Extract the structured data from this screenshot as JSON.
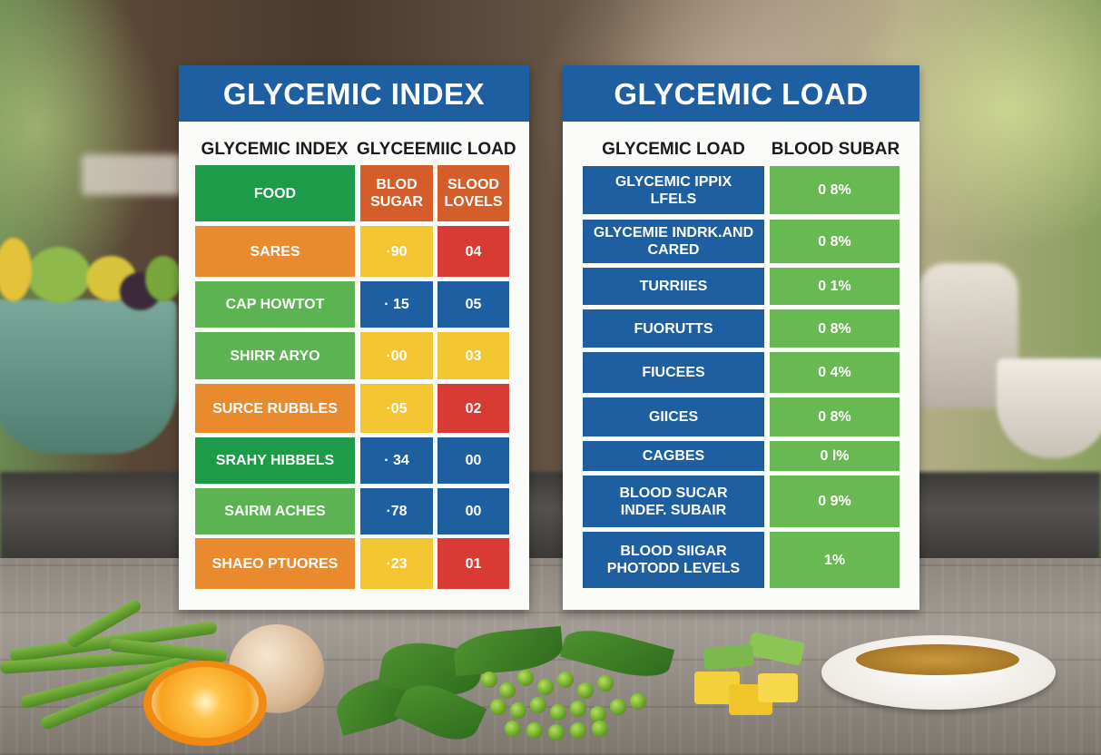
{
  "left_card": {
    "title": "GLYCEMIC INDEX",
    "col_heads": [
      "GLYCEMIC INDEX",
      "GLYCEEMIIC LOAD"
    ],
    "header_row": {
      "food": "FOOD",
      "c1": "BLOD\nSUGAR",
      "c2": "SLOOD\nLOVELS"
    },
    "rows": [
      {
        "food": "SARES",
        "v1": "·90",
        "v2": "04"
      },
      {
        "food": "CAP HOWTOT",
        "v1": "· 15",
        "v2": "05"
      },
      {
        "food": "SHIRR ARYO",
        "v1": "·00",
        "v2": "03"
      },
      {
        "food": "SURCE RUBBLES",
        "v1": "·05",
        "v2": "02"
      },
      {
        "food": "SRAHY HIBBELS",
        "v1": "· 34",
        "v2": "00"
      },
      {
        "food": "SAIRM ACHES",
        "v1": "·78",
        "v2": "00"
      },
      {
        "food": "SHAEO PTUORES",
        "v1": "·23",
        "v2": "01"
      }
    ]
  },
  "right_card": {
    "title": "GLYCEMIC LOAD",
    "col_heads": [
      "GLYCEMIC LOAD",
      "BLOOD SUBAR"
    ],
    "rows": [
      {
        "label": "GLYCEMIC IPPIX\nLFELS",
        "value": "0 8%"
      },
      {
        "label": "GLYCEMIE INDRK.AND\nCARED",
        "value": "0 8%"
      },
      {
        "label": "TURRIIES",
        "value": "0 1%"
      },
      {
        "label": "FUORUTTS",
        "value": "0 8%"
      },
      {
        "label": "FIUCEES",
        "value": "0 4%"
      },
      {
        "label": "GIICES",
        "value": "0 8%"
      },
      {
        "label": "CAGBES",
        "value": "0 l%"
      },
      {
        "label": "BLOOD SUCAR\nINDEF. SUBAIR",
        "value": "0 9%"
      },
      {
        "label": "BLOOD SIIGAR\nPHOTODD LEVELS",
        "value": "1%"
      }
    ]
  },
  "colors": {
    "header_blue": "#1e5fa2",
    "green": "#5bb352",
    "orange": "#ea8a2e",
    "yellow": "#f3c531",
    "red": "#d83a34"
  }
}
